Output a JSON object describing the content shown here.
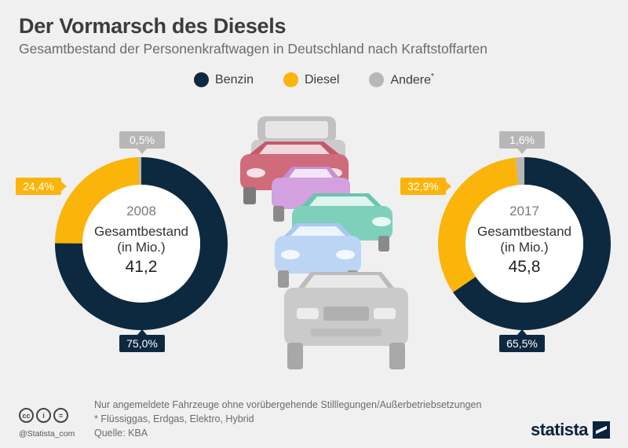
{
  "title": "Der Vormarsch des Diesels",
  "subtitle": "Gesamtbestand der Personenkraftwagen in Deutschland nach Kraftstoffarten",
  "colors": {
    "benzin": "#0d2940",
    "diesel": "#fbb40a",
    "andere": "#b7b7b7"
  },
  "chart_data": [
    {
      "type": "pie",
      "year": "2008",
      "center_label_line1": "Gesamtbestand",
      "center_label_line2": "(in Mio.)",
      "total": "41,2",
      "categories": [
        "Benzin",
        "Diesel",
        "Andere*"
      ],
      "values": [
        75.0,
        24.4,
        0.5
      ],
      "labels": [
        "75,0%",
        "24,4%",
        "0,5%"
      ]
    },
    {
      "type": "pie",
      "year": "2017",
      "center_label_line1": "Gesamtbestand",
      "center_label_line2": "(in Mio.)",
      "total": "45,8",
      "categories": [
        "Benzin",
        "Diesel",
        "Andere*"
      ],
      "values": [
        65.5,
        32.9,
        1.6
      ],
      "labels": [
        "65,5%",
        "32,9%",
        "1,6%"
      ]
    }
  ],
  "legend": [
    {
      "label": "Benzin",
      "sup": ""
    },
    {
      "label": "Diesel",
      "sup": ""
    },
    {
      "label": "Andere",
      "sup": "*"
    }
  ],
  "footer": {
    "note1": "Nur angemeldete Fahrzeuge ohne vorübergehende Stilllegungen/Außerbetriebsetzungen",
    "note2": "* Flüssiggas, Erdgas, Elektro, Hybrid",
    "source": "Quelle: KBA",
    "handle": "@Statista_com",
    "brand": "statista"
  },
  "icons": [
    "cc-icon",
    "person-icon",
    "equals-icon",
    "statista-logo-icon"
  ]
}
